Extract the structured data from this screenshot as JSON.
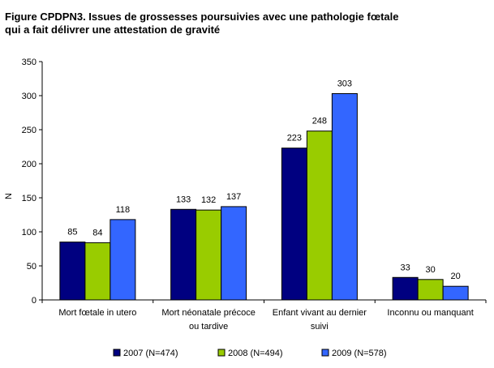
{
  "chart_data": {
    "type": "bar",
    "title_lines": [
      "Figure CPDPN3. Issues de grossesses poursuivies avec une pathologie fœtale",
      "qui a fait délivrer une attestation de gravité"
    ],
    "ylabel": "N",
    "xlabel": "",
    "ylim": [
      0,
      350
    ],
    "yticks": [
      0,
      50,
      100,
      150,
      200,
      250,
      300,
      350
    ],
    "grid": false,
    "legend_position": "bottom",
    "categories": [
      [
        "Mort fœtale in utero"
      ],
      [
        "Mort néonatale précoce",
        "ou tardive"
      ],
      [
        "Enfant vivant au dernier",
        "suivi"
      ],
      [
        "Inconnu ou manquant"
      ]
    ],
    "series": [
      {
        "name": "2007 (N=474)",
        "color": "#000080",
        "values": [
          85,
          133,
          223,
          33
        ]
      },
      {
        "name": "2008 (N=494)",
        "color": "#99CC00",
        "values": [
          84,
          132,
          248,
          30
        ]
      },
      {
        "name": "2009 (N=578)",
        "color": "#3366FF",
        "values": [
          118,
          137,
          303,
          20
        ]
      }
    ]
  }
}
